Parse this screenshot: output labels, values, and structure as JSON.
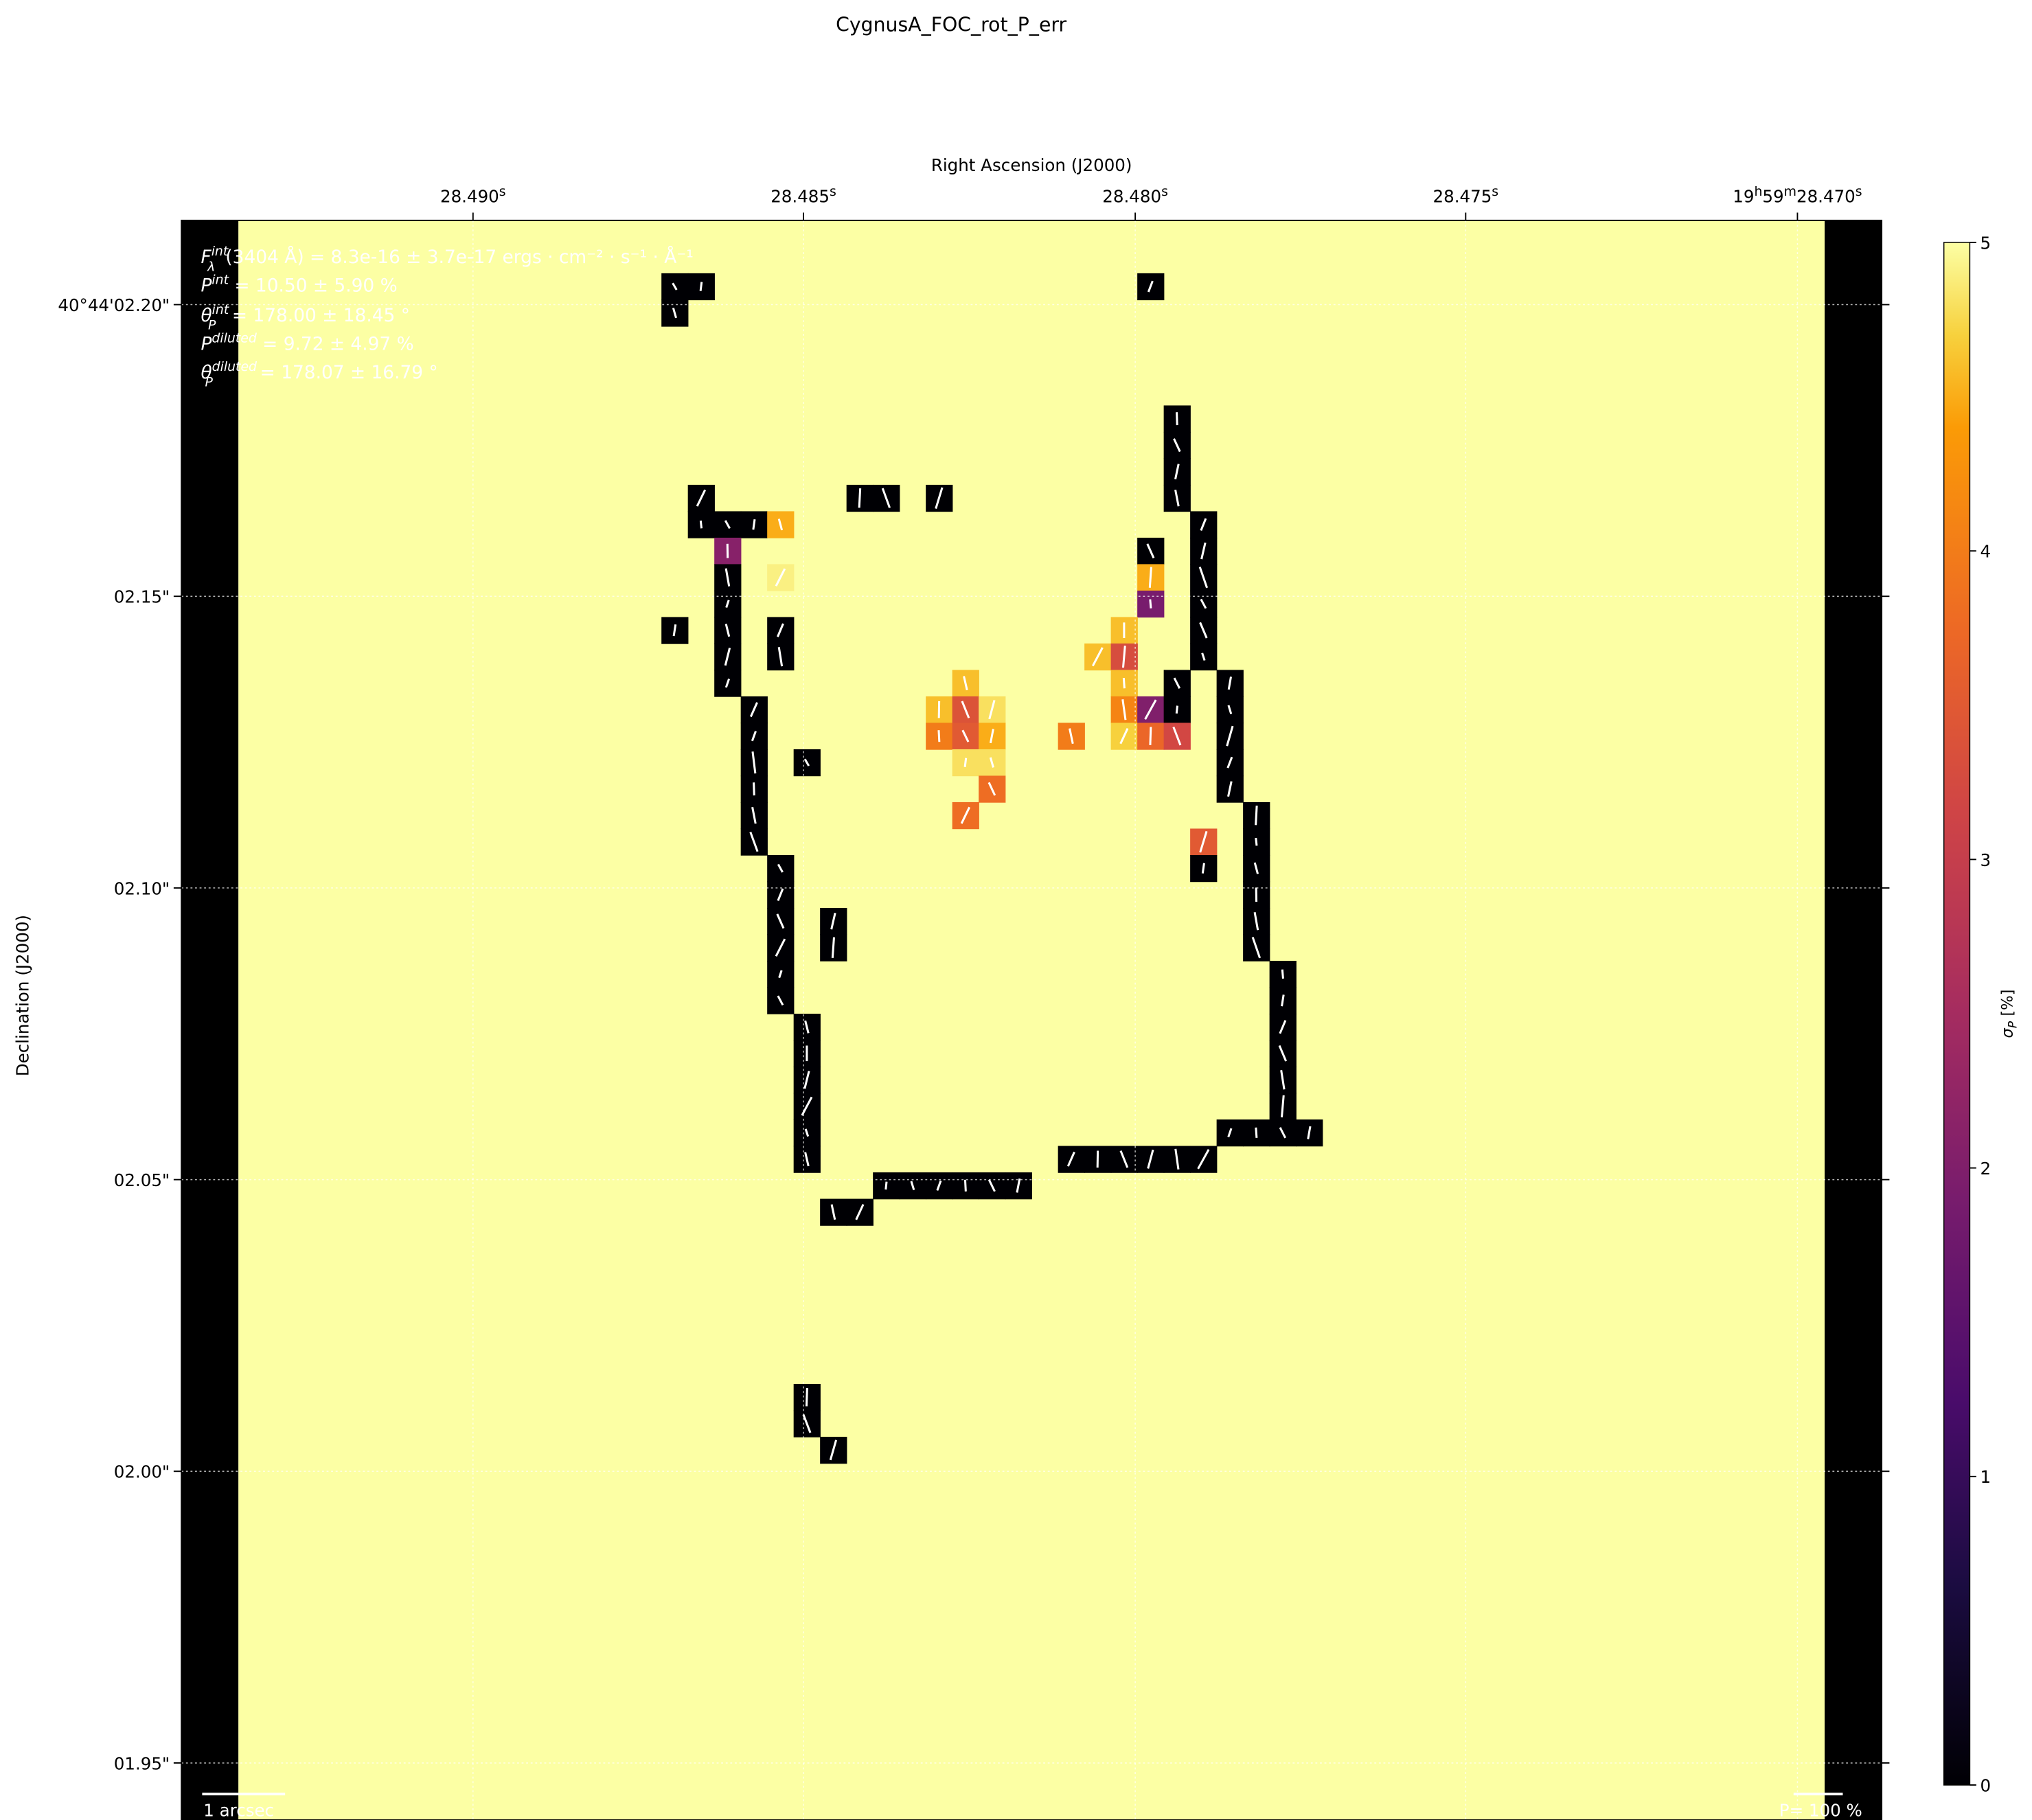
{
  "chart_data": {
    "type": "heatmap",
    "title": "CygnusA_FOC_rot_P_err",
    "xlabel": "Right Ascension (J2000)",
    "ylabel": "Declination (J2000)",
    "x_ticks": [
      {
        "pre": "28.490",
        "sup": "s"
      },
      {
        "pre": "28.485",
        "sup": "s"
      },
      {
        "pre": "28.480",
        "sup": "s"
      },
      {
        "pre": "28.475",
        "sup": "s"
      },
      {
        "pre": "19",
        "sup": "h",
        "pre2": "59",
        "sup2": "m",
        "pre3": "28.470",
        "sup3": "s"
      }
    ],
    "y_ticks": [
      "40°44'02.20\"",
      "02.15\"",
      "02.10\"",
      "02.05\"",
      "02.00\"",
      "01.95\""
    ],
    "colorbar": {
      "label": "σ",
      "label_sub": "P",
      "label_unit": " [%]",
      "colormap": "inferno",
      "range": [
        0,
        5
      ],
      "ticks": [
        "0",
        "1",
        "2",
        "3",
        "4",
        "5"
      ]
    },
    "background_value": 5,
    "grid": true,
    "cells_note_units": "pixel column,row index",
    "cells": [
      [
        16,
        2,
        0
      ],
      [
        17,
        2,
        0
      ],
      [
        16,
        3,
        0
      ],
      [
        34,
        2,
        0
      ],
      [
        35,
        7,
        0
      ],
      [
        35,
        8,
        0
      ],
      [
        35,
        9,
        0
      ],
      [
        35,
        10,
        0
      ],
      [
        17,
        10,
        0
      ],
      [
        23,
        10,
        0
      ],
      [
        24,
        10,
        0
      ],
      [
        26,
        10,
        0
      ],
      [
        17,
        11,
        0
      ],
      [
        18,
        11,
        0
      ],
      [
        19,
        11,
        0
      ],
      [
        20,
        11,
        4.5
      ],
      [
        36,
        11,
        0
      ],
      [
        18,
        12,
        2.1
      ],
      [
        34,
        12,
        0
      ],
      [
        36,
        12,
        0
      ],
      [
        18,
        13,
        0
      ],
      [
        20,
        13,
        4.9
      ],
      [
        34,
        13,
        4.5
      ],
      [
        36,
        13,
        0
      ],
      [
        18,
        14,
        0
      ],
      [
        34,
        14,
        1.9
      ],
      [
        36,
        14,
        0
      ],
      [
        16,
        15,
        0
      ],
      [
        18,
        15,
        0
      ],
      [
        20,
        15,
        0
      ],
      [
        33,
        15,
        4.6
      ],
      [
        36,
        15,
        0
      ],
      [
        18,
        16,
        0
      ],
      [
        20,
        16,
        0
      ],
      [
        32,
        16,
        4.6
      ],
      [
        33,
        16,
        3.3
      ],
      [
        36,
        16,
        0
      ],
      [
        18,
        17,
        0
      ],
      [
        33,
        17,
        4.6
      ],
      [
        35,
        17,
        0
      ],
      [
        37,
        17,
        0
      ],
      [
        27,
        17,
        4.6
      ],
      [
        19,
        18,
        0
      ],
      [
        26,
        18,
        4.6
      ],
      [
        27,
        18,
        3.4
      ],
      [
        28,
        18,
        4.8
      ],
      [
        33,
        18,
        4.1
      ],
      [
        34,
        18,
        2.0
      ],
      [
        35,
        18,
        0
      ],
      [
        37,
        18,
        0
      ],
      [
        19,
        19,
        0
      ],
      [
        26,
        19,
        4.0
      ],
      [
        27,
        19,
        3.5
      ],
      [
        28,
        19,
        4.5
      ],
      [
        31,
        19,
        4.0
      ],
      [
        33,
        19,
        4.7
      ],
      [
        34,
        19,
        3.7
      ],
      [
        35,
        19,
        3.2
      ],
      [
        37,
        19,
        0
      ],
      [
        19,
        20,
        0
      ],
      [
        21,
        20,
        0
      ],
      [
        27,
        20,
        4.8
      ],
      [
        28,
        20,
        4.8
      ],
      [
        37,
        20,
        0
      ],
      [
        19,
        21,
        0
      ],
      [
        28,
        21,
        3.8
      ],
      [
        37,
        21,
        0
      ],
      [
        19,
        22,
        0
      ],
      [
        27,
        22,
        3.8
      ],
      [
        38,
        22,
        0
      ],
      [
        19,
        23,
        0
      ],
      [
        36,
        23,
        3.5
      ],
      [
        38,
        23,
        0
      ],
      [
        20,
        24,
        0
      ],
      [
        36,
        24,
        0
      ],
      [
        38,
        24,
        0
      ],
      [
        20,
        25,
        0
      ],
      [
        38,
        25,
        0
      ],
      [
        20,
        26,
        0
      ],
      [
        22,
        26,
        0
      ],
      [
        38,
        26,
        0
      ],
      [
        20,
        27,
        0
      ],
      [
        22,
        27,
        0
      ],
      [
        38,
        27,
        0
      ],
      [
        20,
        28,
        0
      ],
      [
        39,
        28,
        0
      ],
      [
        20,
        29,
        0
      ],
      [
        39,
        29,
        0
      ],
      [
        21,
        30,
        0
      ],
      [
        39,
        30,
        0
      ],
      [
        21,
        31,
        0
      ],
      [
        39,
        31,
        0
      ],
      [
        21,
        32,
        0
      ],
      [
        39,
        32,
        0
      ],
      [
        21,
        33,
        0
      ],
      [
        39,
        33,
        0
      ],
      [
        21,
        34,
        0
      ],
      [
        37,
        34,
        0
      ],
      [
        38,
        34,
        0
      ],
      [
        39,
        34,
        0
      ],
      [
        40,
        34,
        0
      ],
      [
        21,
        35,
        0
      ],
      [
        31,
        35,
        0
      ],
      [
        32,
        35,
        0
      ],
      [
        33,
        35,
        0
      ],
      [
        34,
        35,
        0
      ],
      [
        35,
        35,
        0
      ],
      [
        36,
        35,
        0
      ],
      [
        24,
        36,
        0
      ],
      [
        25,
        36,
        0
      ],
      [
        26,
        36,
        0
      ],
      [
        27,
        36,
        0
      ],
      [
        28,
        36,
        0
      ],
      [
        29,
        36,
        0
      ],
      [
        22,
        37,
        0
      ],
      [
        23,
        37,
        0
      ],
      [
        21,
        44,
        0
      ],
      [
        21,
        45,
        0
      ],
      [
        22,
        46,
        0
      ]
    ],
    "annotations": [
      {
        "sym": "F",
        "sup": "int",
        "sub": "λ",
        "text": "(3404 Å) = 8.3e-16 ± 3.7e-17 ergs · cm⁻² · s⁻¹ · Å⁻¹"
      },
      {
        "sym": "P",
        "sup": "int",
        "sub": "",
        "text": " = 10.50 ± 5.90 %"
      },
      {
        "sym": "θ",
        "sup": "int",
        "sub": "P",
        "text": " = 178.00 ± 18.45 °"
      },
      {
        "sym": "P",
        "sup": "diluted",
        "sub": "",
        "text": " = 9.72 ± 4.97 %"
      },
      {
        "sym": "θ",
        "sup": "diluted",
        "sub": "P",
        "text": " = 178.07 ± 16.79 °"
      }
    ],
    "scalebar_label": "1 arcsec",
    "vector_scale_label": "P= 100 %"
  }
}
